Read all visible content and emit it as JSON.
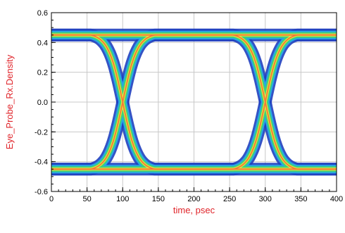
{
  "chart_data": {
    "type": "eye-diagram",
    "xlabel": "time, psec",
    "ylabel": "Eye_Probe_Rx.Density",
    "xlim": [
      0,
      400
    ],
    "ylim": [
      -0.6,
      0.6
    ],
    "x_ticks": [
      0,
      50,
      100,
      150,
      200,
      250,
      300,
      350,
      400
    ],
    "x_tick_labels": [
      "0",
      "50",
      "100",
      "150",
      "200",
      "250",
      "300",
      "350",
      "400"
    ],
    "y_ticks": [
      -0.6,
      -0.4,
      -0.2,
      0.0,
      0.2,
      0.4,
      0.6
    ],
    "y_tick_labels": [
      "-0.6",
      "-0.4",
      "-0.2",
      "0.0",
      "0.2",
      "0.4",
      "0.6"
    ],
    "grid": true,
    "high_level": 0.45,
    "low_level": -0.45,
    "crossings": [
      {
        "time": 100,
        "level": 0.0
      },
      {
        "time": 300,
        "level": 0.0
      }
    ],
    "density_colors": [
      "#1f3fbf",
      "#27a6e6",
      "#3fd07a",
      "#e8e63a",
      "#f07a3a"
    ],
    "label_color": "#e0242a"
  }
}
